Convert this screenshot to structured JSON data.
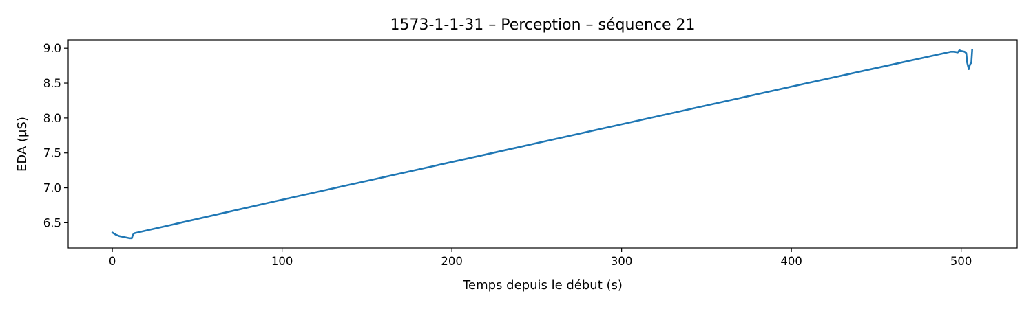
{
  "chart_data": {
    "type": "line",
    "title": "1573-1-1-31 – Perception – séquence 21",
    "xlabel": "Temps depuis le début (s)",
    "ylabel": "EDA (µS)",
    "xlim": [
      -26,
      533
    ],
    "ylim": [
      6.14,
      9.12
    ],
    "xticks": [
      0,
      100,
      200,
      300,
      400,
      500
    ],
    "xtick_labels": [
      "0",
      "100",
      "200",
      "300",
      "400",
      "500"
    ],
    "yticks": [
      6.5,
      7.0,
      7.5,
      8.0,
      8.5,
      9.0
    ],
    "ytick_labels": [
      "6.5",
      "7.0",
      "7.5",
      "8.0",
      "8.5",
      "9.0"
    ],
    "grid": false,
    "series": [
      {
        "name": "EDA",
        "color": "#1f77b4",
        "x": [
          0,
          2,
          4,
          6,
          8,
          10,
          11.5,
          12,
          12.5,
          13,
          100,
          200,
          300,
          400,
          494,
          496,
          498,
          499,
          500,
          502,
          503,
          503.5,
          504,
          504.5,
          505,
          505.5,
          506,
          506.5
        ],
        "y": [
          6.36,
          6.33,
          6.31,
          6.3,
          6.29,
          6.28,
          6.28,
          6.32,
          6.34,
          6.35,
          6.83,
          7.37,
          7.91,
          8.45,
          8.95,
          8.95,
          8.94,
          8.97,
          8.96,
          8.95,
          8.93,
          8.8,
          8.75,
          8.7,
          8.75,
          8.78,
          8.79,
          8.98
        ]
      }
    ]
  }
}
